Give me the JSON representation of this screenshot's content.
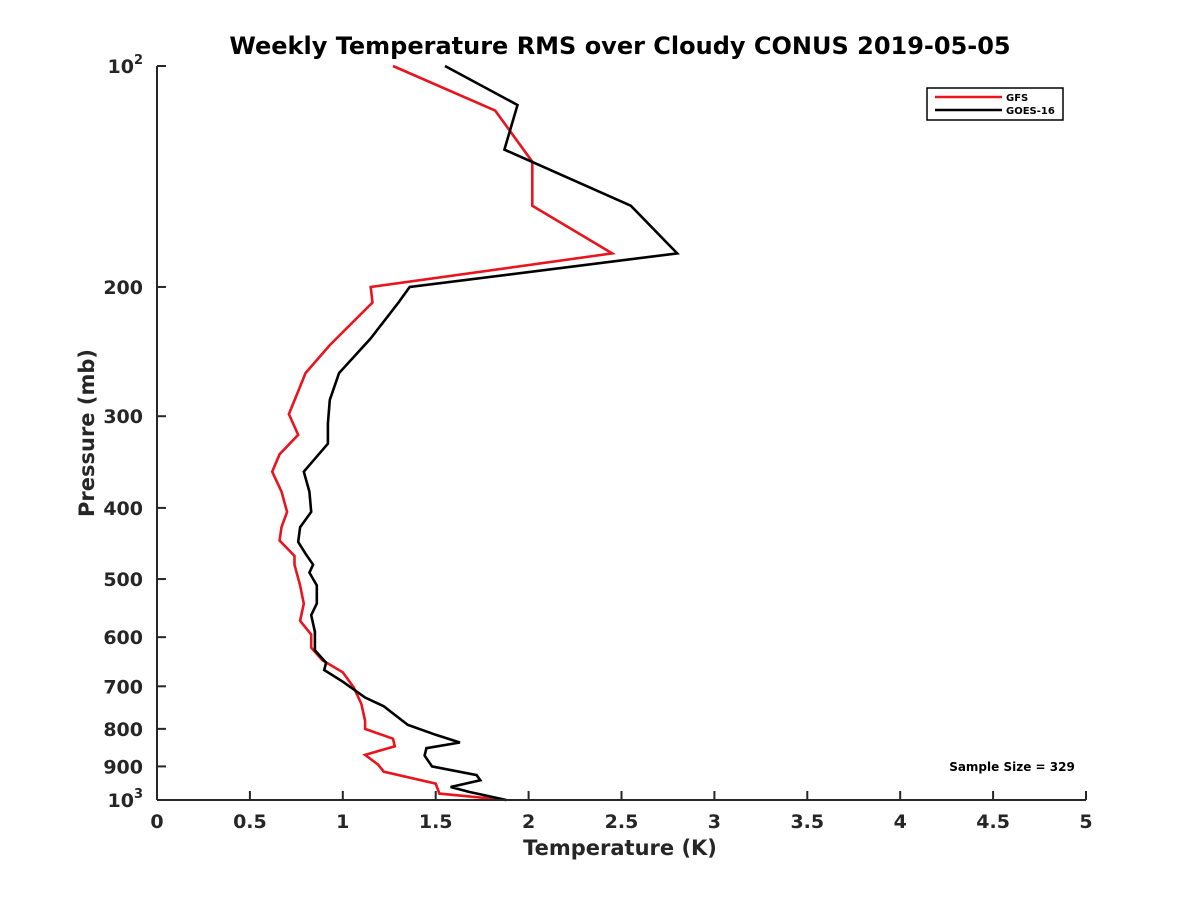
{
  "chart_data": {
    "type": "line",
    "title": "Weekly Temperature RMS over Cloudy CONUS 2019-05-05",
    "xlabel": "Temperature (K)",
    "ylabel": "Pressure (mb)",
    "xlim": [
      0,
      5
    ],
    "ylim": [
      100,
      1000
    ],
    "yscale": "log",
    "y_reversed": true,
    "grid": false,
    "legend_placement": "top-right",
    "x_ticks": [
      0,
      0.5,
      1,
      1.5,
      2,
      2.5,
      3,
      3.5,
      4,
      4.5,
      5
    ],
    "x_tick_labels": [
      "0",
      "0.5",
      "1",
      "1.5",
      "2",
      "2.5",
      "3",
      "3.5",
      "4",
      "4.5",
      "5"
    ],
    "y_ticks": [
      {
        "value": 100,
        "base": "10",
        "exp": "2"
      },
      {
        "value": 200,
        "label": "200"
      },
      {
        "value": 300,
        "label": "300"
      },
      {
        "value": 400,
        "label": "400"
      },
      {
        "value": 500,
        "label": "500"
      },
      {
        "value": 600,
        "label": "600"
      },
      {
        "value": 700,
        "label": "700"
      },
      {
        "value": 800,
        "label": "800"
      },
      {
        "value": 900,
        "label": "900"
      },
      {
        "value": 1000,
        "base": "10",
        "exp": "3"
      }
    ],
    "annotation": "Sample Size = 329",
    "series": [
      {
        "name": "GFS",
        "color": "#e8141e",
        "points": [
          [
            1.27,
            100
          ],
          [
            1.82,
            115
          ],
          [
            2.02,
            135
          ],
          [
            2.02,
            155
          ],
          [
            2.45,
            180
          ],
          [
            1.15,
            200
          ],
          [
            1.16,
            210
          ],
          [
            0.93,
            240
          ],
          [
            0.8,
            262
          ],
          [
            0.71,
            298
          ],
          [
            0.76,
            318
          ],
          [
            0.66,
            338
          ],
          [
            0.62,
            357
          ],
          [
            0.67,
            380
          ],
          [
            0.7,
            405
          ],
          [
            0.67,
            425
          ],
          [
            0.66,
            443
          ],
          [
            0.74,
            465
          ],
          [
            0.74,
            478
          ],
          [
            0.77,
            510
          ],
          [
            0.79,
            540
          ],
          [
            0.77,
            570
          ],
          [
            0.83,
            595
          ],
          [
            0.83,
            620
          ],
          [
            0.89,
            645
          ],
          [
            1.0,
            670
          ],
          [
            1.06,
            703
          ],
          [
            1.1,
            740
          ],
          [
            1.12,
            780
          ],
          [
            1.12,
            800
          ],
          [
            1.27,
            825
          ],
          [
            1.28,
            845
          ],
          [
            1.12,
            868
          ],
          [
            1.19,
            895
          ],
          [
            1.22,
            915
          ],
          [
            1.5,
            950
          ],
          [
            1.52,
            980
          ],
          [
            1.88,
            1000
          ]
        ]
      },
      {
        "name": "GOES-16",
        "color": "#000000",
        "points": [
          [
            1.55,
            100
          ],
          [
            1.94,
            113
          ],
          [
            1.87,
            130
          ],
          [
            2.55,
            155
          ],
          [
            2.8,
            180
          ],
          [
            1.36,
            200
          ],
          [
            1.3,
            210
          ],
          [
            1.15,
            235
          ],
          [
            0.98,
            262
          ],
          [
            0.93,
            285
          ],
          [
            0.92,
            307
          ],
          [
            0.92,
            327
          ],
          [
            0.79,
            357
          ],
          [
            0.82,
            380
          ],
          [
            0.83,
            405
          ],
          [
            0.77,
            425
          ],
          [
            0.76,
            445
          ],
          [
            0.8,
            462
          ],
          [
            0.84,
            478
          ],
          [
            0.82,
            490
          ],
          [
            0.86,
            510
          ],
          [
            0.86,
            540
          ],
          [
            0.83,
            560
          ],
          [
            0.85,
            590
          ],
          [
            0.85,
            625
          ],
          [
            0.91,
            650
          ],
          [
            0.9,
            665
          ],
          [
            1.0,
            690
          ],
          [
            1.12,
            725
          ],
          [
            1.22,
            745
          ],
          [
            1.35,
            790
          ],
          [
            1.5,
            815
          ],
          [
            1.63,
            835
          ],
          [
            1.45,
            850
          ],
          [
            1.44,
            870
          ],
          [
            1.48,
            900
          ],
          [
            1.72,
            925
          ],
          [
            1.74,
            940
          ],
          [
            1.58,
            960
          ],
          [
            1.68,
            975
          ],
          [
            1.88,
            1000
          ]
        ]
      }
    ]
  }
}
